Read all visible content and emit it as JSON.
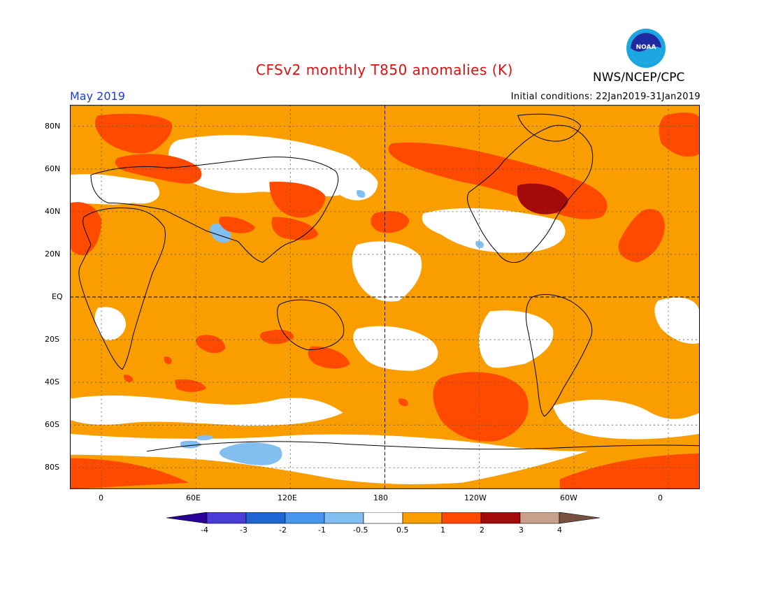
{
  "title": "CFSv2 monthly T850 anomalies (K)",
  "agency": "NWS/NCEP/CPC",
  "logo_text": "NOAA",
  "valid_month": "May 2019",
  "initial_conditions": "Initial conditions: 22Jan2019-31Jan2019",
  "axes": {
    "y_ticks": [
      {
        "label": "80N",
        "lat": 80
      },
      {
        "label": "60N",
        "lat": 60
      },
      {
        "label": "40N",
        "lat": 40
      },
      {
        "label": "20N",
        "lat": 20
      },
      {
        "label": "EQ",
        "lat": 0
      },
      {
        "label": "20S",
        "lat": -20
      },
      {
        "label": "40S",
        "lat": -40
      },
      {
        "label": "60S",
        "lat": -60
      },
      {
        "label": "80S",
        "lat": -80
      }
    ],
    "x_ticks": [
      {
        "label": "0",
        "lon": 0
      },
      {
        "label": "60E",
        "lon": 60
      },
      {
        "label": "120E",
        "lon": 120
      },
      {
        "label": "180",
        "lon": 180
      },
      {
        "label": "120W",
        "lon": 240
      },
      {
        "label": "60W",
        "lon": 300
      },
      {
        "label": "0",
        "lon": 360
      }
    ],
    "lon_range": [
      -20,
      380
    ],
    "lat_range": [
      -90,
      90
    ]
  },
  "colorbar": {
    "labels": [
      "-4",
      "-3",
      "-2",
      "-1",
      "-0.5",
      "0.5",
      "1",
      "2",
      "3",
      "4"
    ],
    "colors": {
      "lt_m4": "#2a0096",
      "m4_m3": "#4a3cd6",
      "m3_m2": "#1e64d2",
      "m2_m1": "#4696f0",
      "m1_m05": "#82bef0",
      "neutral": "#ffffff",
      "p05_p1": "#fa9e00",
      "p1_p2": "#ff4a00",
      "p2_p3": "#a50a0a",
      "p3_p4": "#c8a08c",
      "gt_p4": "#785040"
    }
  }
}
